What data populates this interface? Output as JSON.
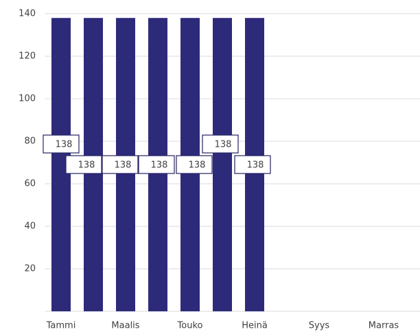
{
  "chart_data": {
    "type": "bar",
    "categories": [
      "Tammi",
      null,
      "Maalis",
      null,
      "Touko",
      null,
      "Heinä",
      null,
      "Syys",
      null,
      "Marras",
      null
    ],
    "values": [
      138,
      138,
      138,
      138,
      138,
      138,
      138,
      null,
      null,
      null,
      null,
      null
    ],
    "color": "#2e2a7a",
    "ylim": [
      0,
      140
    ],
    "yticks": [
      20,
      40,
      60,
      80,
      100,
      120,
      140
    ],
    "grid": true
  }
}
